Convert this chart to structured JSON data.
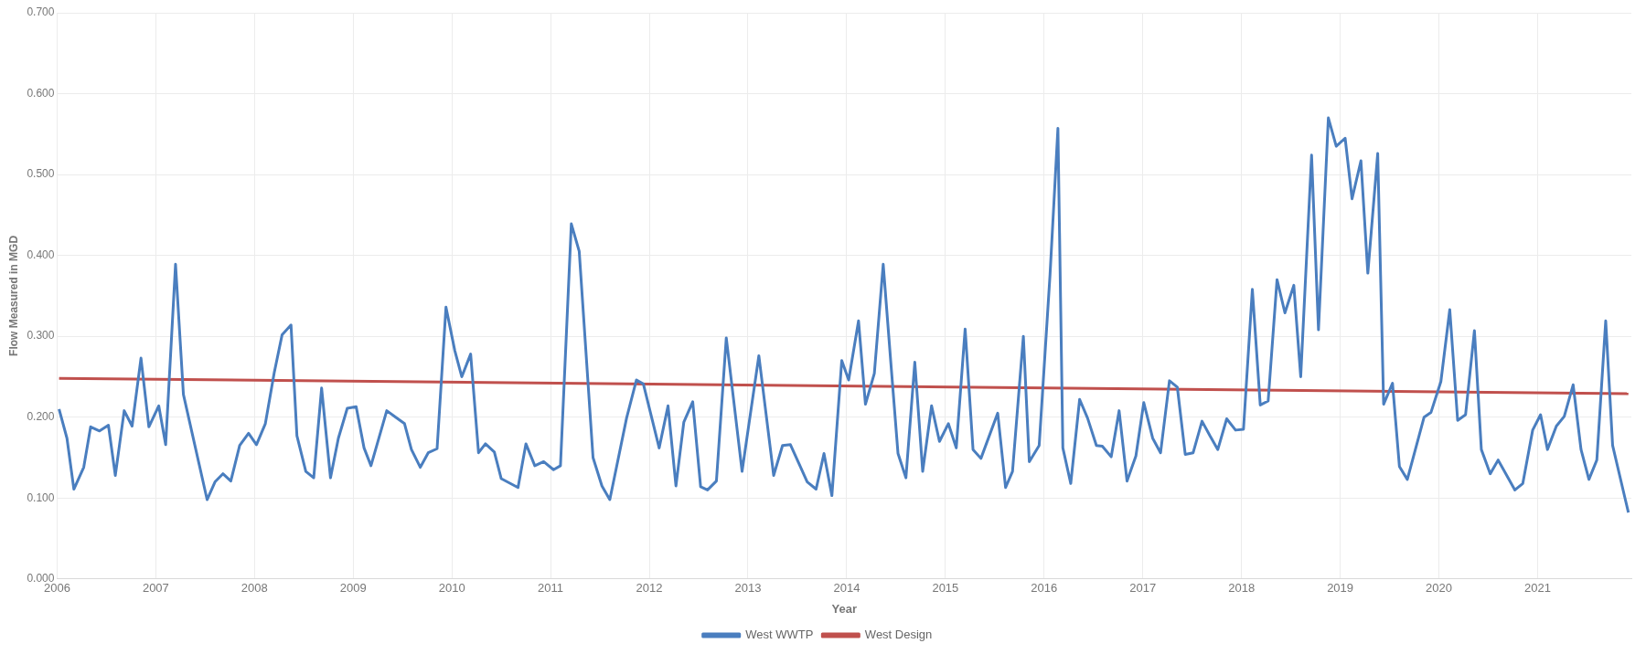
{
  "chart_data": {
    "type": "line",
    "xlabel": "Year",
    "ylabel": "Flow Measured in MGD",
    "legend": "bottom",
    "grid": true,
    "marker": "none",
    "line_style": "solid",
    "xlim": [
      2006,
      2021.95
    ],
    "xticks": [
      2006,
      2007,
      2008,
      2009,
      2010,
      2011,
      2012,
      2013,
      2014,
      2015,
      2016,
      2017,
      2018,
      2019,
      2020,
      2021
    ],
    "ylim": [
      0,
      0.7
    ],
    "yticks": [
      {
        "value": 0,
        "label": "0.000"
      },
      {
        "value": 0.1,
        "label": "0.100"
      },
      {
        "value": 0.2,
        "label": "0.200"
      },
      {
        "value": 0.3,
        "label": "0.300"
      },
      {
        "value": 0.4,
        "label": "0.400"
      },
      {
        "value": 0.5,
        "label": "0.500"
      },
      {
        "value": 0.6,
        "label": "0.600"
      },
      {
        "value": 0.7,
        "label": "0.700"
      }
    ],
    "series": [
      {
        "name": "West WWTP",
        "color": "#4a7ebf",
        "x": [
          2006.02,
          2006.1,
          2006.17,
          2006.27,
          2006.34,
          2006.43,
          2006.52,
          2006.59,
          2006.68,
          2006.76,
          2006.85,
          2006.93,
          2007.03,
          2007.1,
          2007.2,
          2007.28,
          2007.52,
          2007.6,
          2007.68,
          2007.76,
          2007.85,
          2007.94,
          2008.02,
          2008.11,
          2008.2,
          2008.28,
          2008.37,
          2008.43,
          2008.52,
          2008.6,
          2008.68,
          2008.77,
          2008.85,
          2008.94,
          2009.03,
          2009.11,
          2009.18,
          2009.34,
          2009.43,
          2009.52,
          2009.59,
          2009.68,
          2009.76,
          2009.85,
          2009.94,
          2010.03,
          2010.1,
          2010.19,
          2010.27,
          2010.34,
          2010.43,
          2010.5,
          2010.67,
          2010.75,
          2010.84,
          2010.93,
          2011.03,
          2011.1,
          2011.21,
          2011.29,
          2011.43,
          2011.52,
          2011.6,
          2011.77,
          2011.87,
          2011.94,
          2012.1,
          2012.19,
          2012.27,
          2012.35,
          2012.44,
          2012.52,
          2012.59,
          2012.68,
          2012.78,
          2012.94,
          2013.11,
          2013.26,
          2013.35,
          2013.43,
          2013.6,
          2013.69,
          2013.77,
          2013.85,
          2013.95,
          2014.02,
          2014.12,
          2014.19,
          2014.28,
          2014.37,
          2014.45,
          2014.52,
          2014.6,
          2014.69,
          2014.77,
          2014.86,
          2014.94,
          2015.03,
          2015.11,
          2015.2,
          2015.28,
          2015.36,
          2015.53,
          2015.61,
          2015.68,
          2015.79,
          2015.85,
          2015.95,
          2016.06,
          2016.14,
          2016.19,
          2016.27,
          2016.36,
          2016.44,
          2016.53,
          2016.59,
          2016.68,
          2016.76,
          2016.84,
          2016.93,
          2017.01,
          2017.1,
          2017.18,
          2017.27,
          2017.35,
          2017.43,
          2017.51,
          2017.6,
          2017.68,
          2017.76,
          2017.85,
          2017.94,
          2018.02,
          2018.11,
          2018.19,
          2018.27,
          2018.36,
          2018.44,
          2018.53,
          2018.6,
          2018.71,
          2018.78,
          2018.88,
          2018.96,
          2019.05,
          2019.12,
          2019.21,
          2019.28,
          2019.38,
          2019.44,
          2019.53,
          2019.6,
          2019.68,
          2019.85,
          2019.92,
          2020.02,
          2020.11,
          2020.19,
          2020.27,
          2020.36,
          2020.43,
          2020.52,
          2020.6,
          2020.77,
          2020.85,
          2020.95,
          2021.03,
          2021.1,
          2021.19,
          2021.27,
          2021.36,
          2021.44,
          2021.52,
          2021.6,
          2021.69,
          2021.76,
          2021.92
        ],
        "values": [
          0.21,
          0.174,
          0.111,
          0.138,
          0.188,
          0.183,
          0.19,
          0.128,
          0.208,
          0.189,
          0.273,
          0.188,
          0.214,
          0.166,
          0.389,
          0.228,
          0.098,
          0.12,
          0.13,
          0.121,
          0.165,
          0.18,
          0.166,
          0.192,
          0.255,
          0.302,
          0.314,
          0.177,
          0.133,
          0.125,
          0.236,
          0.125,
          0.174,
          0.211,
          0.213,
          0.162,
          0.14,
          0.208,
          0.2,
          0.192,
          0.16,
          0.138,
          0.156,
          0.161,
          0.336,
          0.282,
          0.25,
          0.278,
          0.156,
          0.167,
          0.157,
          0.124,
          0.113,
          0.167,
          0.14,
          0.145,
          0.135,
          0.14,
          0.439,
          0.405,
          0.15,
          0.115,
          0.098,
          0.199,
          0.246,
          0.241,
          0.162,
          0.214,
          0.115,
          0.194,
          0.219,
          0.114,
          0.11,
          0.121,
          0.298,
          0.133,
          0.276,
          0.128,
          0.165,
          0.166,
          0.12,
          0.111,
          0.155,
          0.103,
          0.27,
          0.246,
          0.319,
          0.216,
          0.254,
          0.389,
          0.263,
          0.155,
          0.125,
          0.268,
          0.133,
          0.214,
          0.17,
          0.192,
          0.162,
          0.309,
          0.16,
          0.149,
          0.205,
          0.113,
          0.133,
          0.3,
          0.145,
          0.165,
          0.376,
          0.557,
          0.162,
          0.118,
          0.222,
          0.199,
          0.165,
          0.164,
          0.151,
          0.208,
          0.121,
          0.152,
          0.218,
          0.174,
          0.156,
          0.245,
          0.237,
          0.154,
          0.156,
          0.195,
          0.177,
          0.16,
          0.198,
          0.184,
          0.185,
          0.358,
          0.215,
          0.22,
          0.37,
          0.329,
          0.363,
          0.25,
          0.524,
          0.308,
          0.57,
          0.535,
          0.545,
          0.47,
          0.517,
          0.378,
          0.526,
          0.216,
          0.242,
          0.139,
          0.123,
          0.2,
          0.206,
          0.244,
          0.333,
          0.196,
          0.203,
          0.307,
          0.16,
          0.13,
          0.147,
          0.11,
          0.118,
          0.184,
          0.203,
          0.16,
          0.189,
          0.201,
          0.24,
          0.16,
          0.123,
          0.147,
          0.319,
          0.165,
          0.082
        ]
      },
      {
        "name": "West Design",
        "color": "#c0504d",
        "x": [
          2006.02,
          2021.92
        ],
        "values": [
          0.248,
          0.229
        ]
      }
    ]
  }
}
